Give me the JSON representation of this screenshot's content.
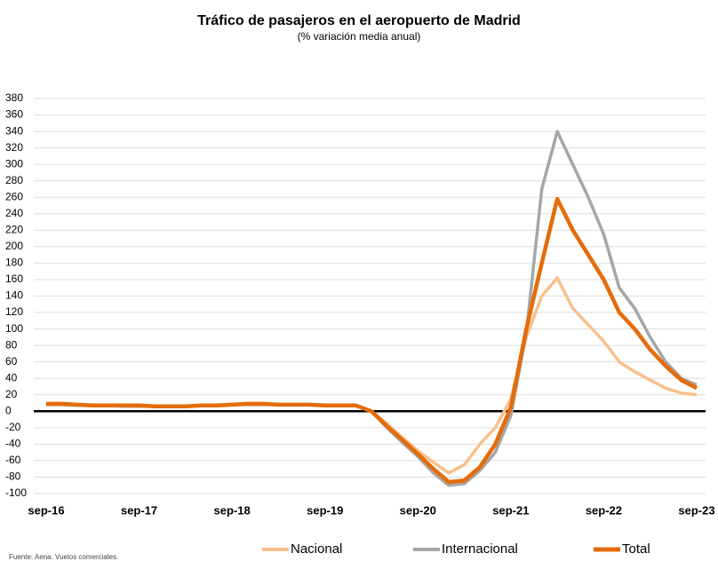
{
  "chart_data": {
    "type": "line",
    "title": "Tráfico de pasajeros en el aeropuerto de Madrid",
    "subtitle": "(% variación media anual)",
    "source": "Fuente: Aena. Vuelos comerciales.",
    "categories": [
      "sep-16",
      null,
      null,
      null,
      null,
      null,
      "sep-17",
      null,
      null,
      null,
      null,
      null,
      "sep-18",
      null,
      null,
      null,
      null,
      null,
      "sep-19",
      null,
      null,
      null,
      null,
      null,
      "sep-20",
      null,
      null,
      null,
      null,
      null,
      "sep-21",
      null,
      null,
      null,
      null,
      null,
      "sep-22",
      null,
      null,
      null,
      null,
      null,
      "sep-23"
    ],
    "series": [
      {
        "name": "Nacional",
        "color": "#f8c08c",
        "values": [
          9,
          9,
          8,
          7,
          7,
          7,
          7,
          6,
          6,
          6,
          7,
          7,
          8,
          9,
          9,
          8,
          8,
          8,
          7,
          7,
          7,
          0,
          -15,
          -32,
          -48,
          -62,
          -75,
          -65,
          -40,
          -20,
          15,
          90,
          140,
          162,
          125,
          105,
          85,
          60,
          48,
          38,
          28,
          22,
          20
        ]
      },
      {
        "name": "Internacional",
        "color": "#a6a6a6",
        "values": [
          8,
          8,
          7,
          7,
          7,
          6,
          6,
          6,
          6,
          6,
          7,
          7,
          8,
          8,
          8,
          8,
          8,
          8,
          7,
          7,
          7,
          0,
          -20,
          -38,
          -55,
          -75,
          -90,
          -88,
          -72,
          -50,
          -5,
          95,
          270,
          340,
          300,
          260,
          215,
          150,
          125,
          90,
          60,
          40,
          32
        ]
      },
      {
        "name": "Total",
        "color": "#e46c0a",
        "values": [
          9,
          9,
          8,
          7,
          7,
          7,
          7,
          6,
          6,
          6,
          7,
          7,
          8,
          9,
          9,
          8,
          8,
          8,
          7,
          7,
          7,
          0,
          -18,
          -35,
          -52,
          -70,
          -86,
          -84,
          -68,
          -40,
          5,
          100,
          180,
          258,
          220,
          190,
          160,
          120,
          100,
          75,
          55,
          38,
          28
        ]
      }
    ],
    "ylim": [
      -100,
      380
    ],
    "yticks": [
      -100,
      -80,
      -60,
      -40,
      -20,
      0,
      20,
      40,
      60,
      80,
      100,
      120,
      140,
      160,
      180,
      200,
      220,
      240,
      260,
      280,
      300,
      320,
      340,
      360,
      380
    ],
    "grid": true
  }
}
